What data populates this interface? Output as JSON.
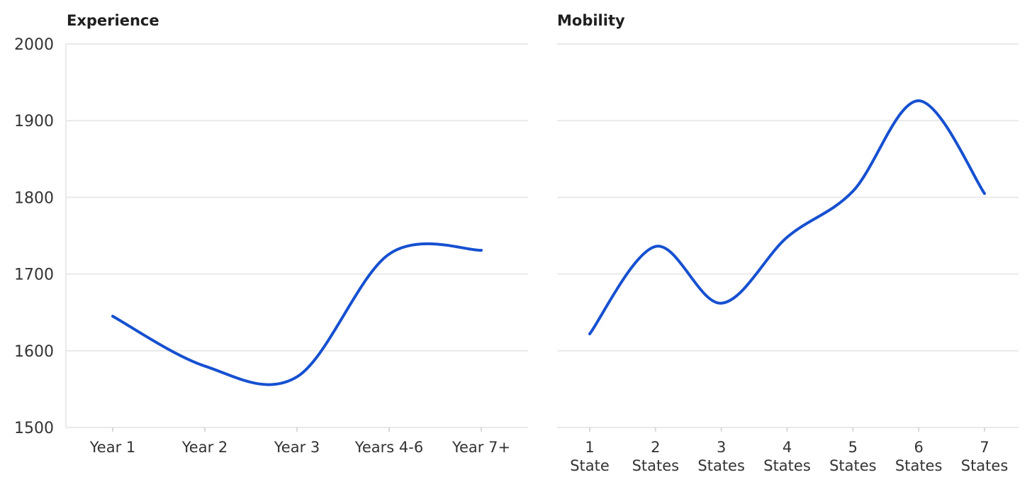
{
  "chart_data": [
    {
      "type": "line",
      "title": "Experience",
      "x": [
        [
          "Year 1"
        ],
        [
          "Year 2"
        ],
        [
          "Year 3"
        ],
        [
          "Years 4-6"
        ],
        [
          "Year 7+"
        ]
      ],
      "series": [
        {
          "values": [
            1645,
            1580,
            1566,
            1726,
            1731
          ]
        }
      ],
      "xlabel": "",
      "ylabel": "",
      "ylim": [
        1500,
        2000
      ],
      "yticks": [
        1500,
        1600,
        1700,
        1800,
        1900,
        2000
      ],
      "grid": true,
      "line_color": "#1650d0"
    },
    {
      "type": "line",
      "title": "Mobility",
      "x": [
        [
          "1",
          "State"
        ],
        [
          "2",
          "States"
        ],
        [
          "3",
          "States"
        ],
        [
          "4",
          "States"
        ],
        [
          "5",
          "States"
        ],
        [
          "6",
          "States"
        ],
        [
          "7",
          "States"
        ]
      ],
      "series": [
        {
          "values": [
            1622,
            1736,
            1662,
            1748,
            1808,
            1926,
            1805
          ]
        }
      ],
      "xlabel": "",
      "ylabel": "",
      "ylim": [
        1500,
        2000
      ],
      "yticks": [
        1500,
        1600,
        1700,
        1800,
        1900,
        2000
      ],
      "grid": true,
      "line_color": "#1650d0"
    }
  ]
}
